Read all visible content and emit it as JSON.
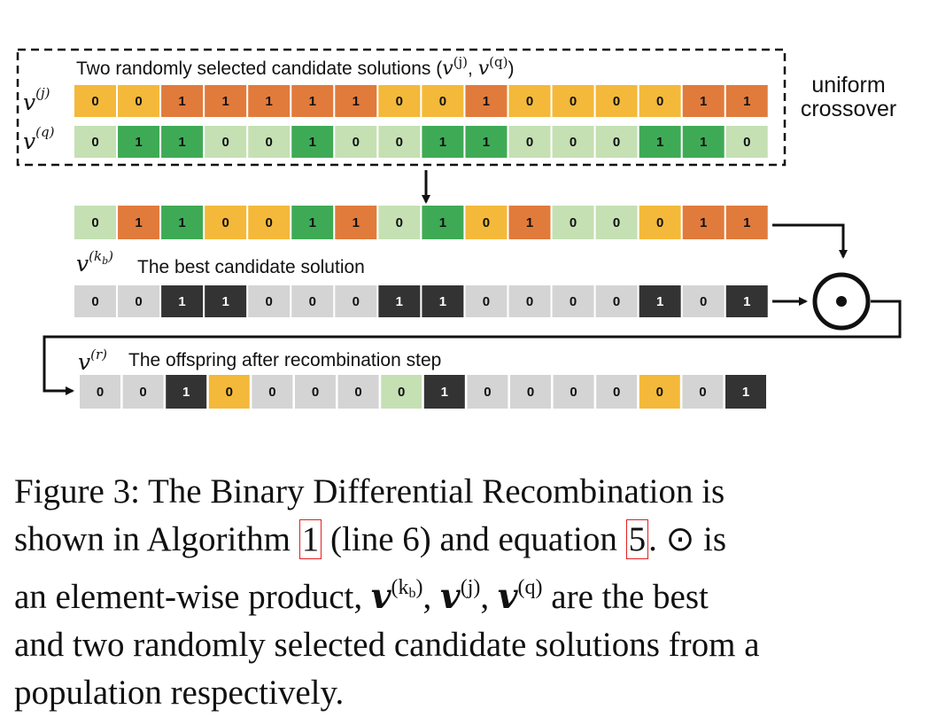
{
  "diagram": {
    "box_title": "Two randomly selected candidate solutions (",
    "box_title_tail": ")",
    "side_label_line1": "uniform",
    "side_label_line2": "crossover",
    "best_label": "The best candidate solution",
    "offspring_label": "The offspring after recombination step",
    "v_symbol": "v",
    "sup_j": "(j)",
    "sup_q": "(q)",
    "sup_kb": "(k",
    "sup_kb_sub": "b",
    "sup_kb_close": ")",
    "sup_r": "(r)",
    "operator_symbol": "⊙",
    "colors": {
      "vj_zero": "#f4b93a",
      "vj_one": "#e07b3c",
      "vq_zero": "#c5e0b3",
      "vq_one": "#3faa55",
      "best_zero": "#d4d4d4",
      "best_one": "#333333"
    },
    "rows": {
      "vj": {
        "bits": [
          "0",
          "0",
          "1",
          "1",
          "1",
          "1",
          "1",
          "0",
          "0",
          "1",
          "0",
          "0",
          "0",
          "0",
          "1",
          "1"
        ],
        "src": [
          "j",
          "j",
          "j",
          "j",
          "j",
          "j",
          "j",
          "j",
          "j",
          "j",
          "j",
          "j",
          "j",
          "j",
          "j",
          "j"
        ]
      },
      "vq": {
        "bits": [
          "0",
          "1",
          "1",
          "0",
          "0",
          "1",
          "0",
          "0",
          "1",
          "1",
          "0",
          "0",
          "0",
          "1",
          "1",
          "0"
        ],
        "src": [
          "q",
          "q",
          "q",
          "q",
          "q",
          "q",
          "q",
          "q",
          "q",
          "q",
          "q",
          "q",
          "q",
          "q",
          "q",
          "q"
        ]
      },
      "crossover": {
        "bits": [
          "0",
          "1",
          "1",
          "0",
          "0",
          "1",
          "1",
          "0",
          "1",
          "0",
          "1",
          "0",
          "0",
          "0",
          "1",
          "1"
        ],
        "src": [
          "q",
          "j",
          "q",
          "j",
          "j",
          "q",
          "j",
          "q",
          "q",
          "j",
          "j",
          "q",
          "q",
          "j",
          "j",
          "j"
        ]
      },
      "best": {
        "bits": [
          "0",
          "0",
          "1",
          "1",
          "0",
          "0",
          "0",
          "1",
          "1",
          "0",
          "0",
          "0",
          "0",
          "1",
          "0",
          "1"
        ],
        "src": [
          "b",
          "b",
          "b",
          "b",
          "b",
          "b",
          "b",
          "b",
          "b",
          "b",
          "b",
          "b",
          "b",
          "b",
          "b",
          "b"
        ]
      },
      "offspring": {
        "bits": [
          "0",
          "0",
          "1",
          "0",
          "0",
          "0",
          "0",
          "0",
          "1",
          "0",
          "0",
          "0",
          "0",
          "0",
          "0",
          "1"
        ],
        "src": [
          "b",
          "b",
          "b",
          "j",
          "b",
          "b",
          "b",
          "q",
          "b",
          "b",
          "b",
          "b",
          "b",
          "j",
          "b",
          "b"
        ]
      }
    }
  },
  "caption": {
    "l1": "Figure 3:  The Binary Differential Recombination is",
    "l2_a": "shown in Algorithm ",
    "l2_ref1": "1",
    "l2_b": " (line 6) and equation ",
    "l2_ref2": "5",
    "l2_c": ".  ⊙ is",
    "l3_a": "an element-wise product, ",
    "l3_v": "v",
    "l3_s1": "(k",
    "l3_s1sub": "b",
    "l3_s1close": ")",
    "l3_comma1": ", ",
    "l3_s2": "(j)",
    "l3_comma2": ", ",
    "l3_s3": "(q)",
    "l3_b": " are the best",
    "l4": "and two randomly selected candidate solutions from a",
    "l5": "population respectively."
  }
}
